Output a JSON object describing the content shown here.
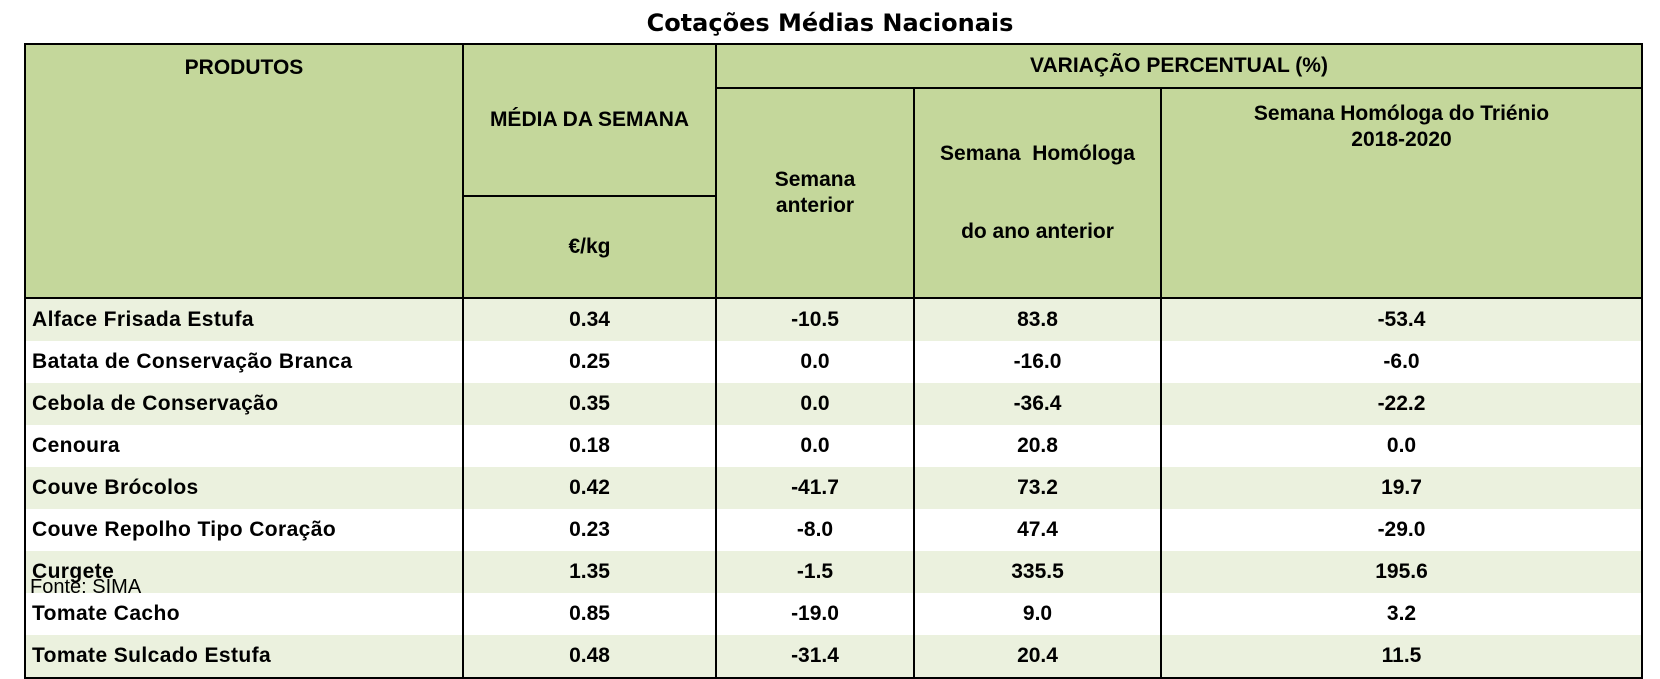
{
  "title": "Cotações Médias Nacionais",
  "headers": {
    "produtos": "PRODUTOS",
    "media_semana": "MÉDIA DA SEMANA",
    "unit": "€/kg",
    "variacao": "VARIAÇÃO PERCENTUAL (%)",
    "semana_anterior": [
      "Semana",
      "anterior"
    ],
    "homologa_ano": [
      "Semana  Homóloga",
      "do ano anterior"
    ],
    "homologa_trienio": [
      "Semana Homóloga do Triénio",
      "2018-2020"
    ]
  },
  "rows": [
    {
      "produto": "Alface Frisada Estufa",
      "media": "0.34",
      "anterior": "-10.5",
      "ano": "83.8",
      "trienio": "-53.4"
    },
    {
      "produto": "Batata de Conservação Branca",
      "media": "0.25",
      "anterior": "0.0",
      "ano": "-16.0",
      "trienio": "-6.0"
    },
    {
      "produto": "Cebola de Conservação",
      "media": "0.35",
      "anterior": "0.0",
      "ano": "-36.4",
      "trienio": "-22.2"
    },
    {
      "produto": "Cenoura",
      "media": "0.18",
      "anterior": "0.0",
      "ano": "20.8",
      "trienio": "0.0"
    },
    {
      "produto": "Couve Brócolos",
      "media": "0.42",
      "anterior": "-41.7",
      "ano": "73.2",
      "trienio": "19.7"
    },
    {
      "produto": "Couve Repolho Tipo Coração",
      "media": "0.23",
      "anterior": "-8.0",
      "ano": "47.4",
      "trienio": "-29.0"
    },
    {
      "produto": "Curgete",
      "media": "1.35",
      "anterior": "-1.5",
      "ano": "335.5",
      "trienio": "195.6"
    },
    {
      "produto": "Tomate Cacho",
      "media": "0.85",
      "anterior": "-19.0",
      "ano": "9.0",
      "trienio": "3.2"
    },
    {
      "produto": "Tomate Sulcado Estufa",
      "media": "0.48",
      "anterior": "-31.4",
      "ano": "20.4",
      "trienio": "11.5"
    }
  ],
  "source": "Fonte: SIMA",
  "colors": {
    "header_bg": "#c4d79b",
    "row_alt_bg": "#ebf1de",
    "row_bg": "#ffffff"
  }
}
